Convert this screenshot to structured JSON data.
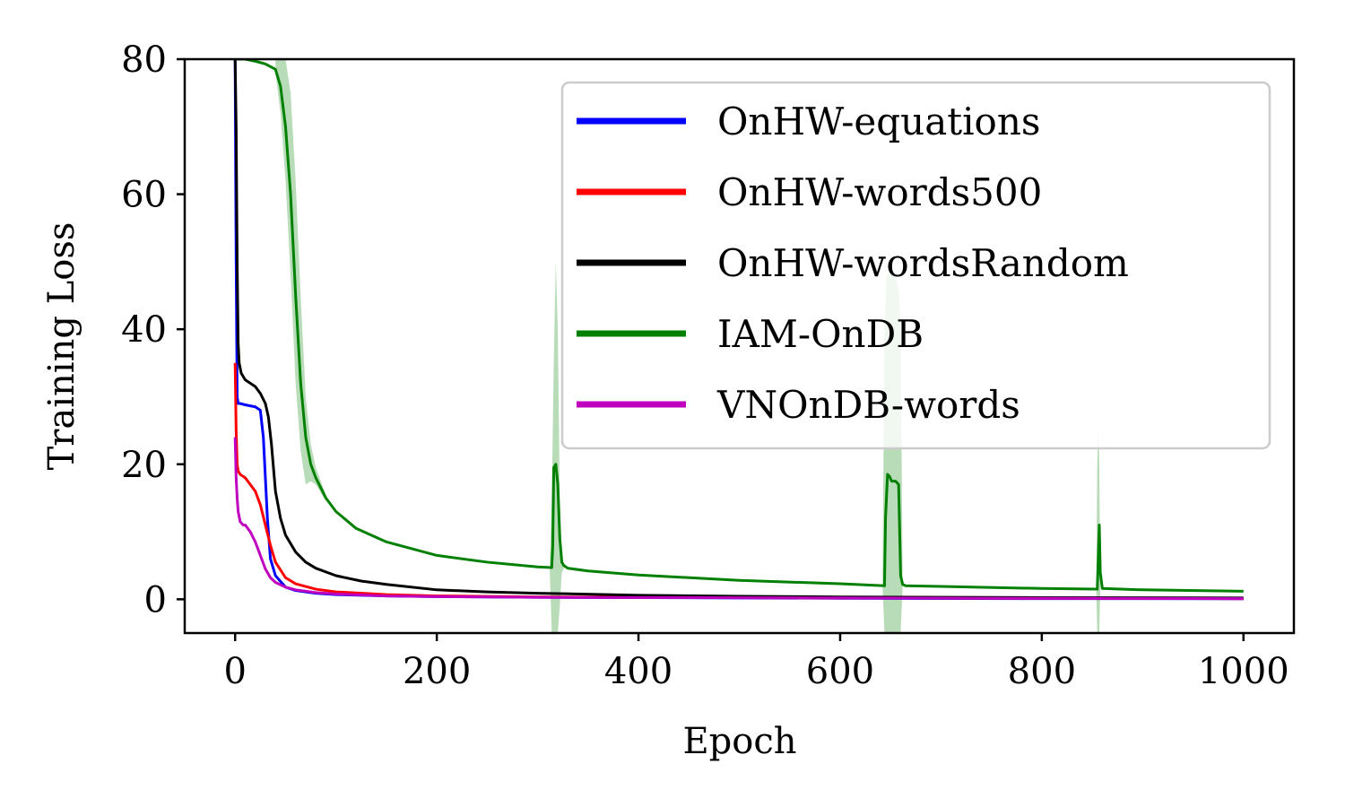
{
  "chart_data": {
    "type": "line",
    "xlabel": "Epoch",
    "ylabel": "Training Loss",
    "xlim": [
      -50,
      1050
    ],
    "ylim": [
      -5,
      80
    ],
    "xticks": [
      "0",
      "200",
      "400",
      "600",
      "800",
      "1000"
    ],
    "yticks": [
      "0",
      "20",
      "40",
      "60",
      "80"
    ],
    "grid": false,
    "legend_position": "top-right",
    "series": [
      {
        "name": "OnHW-equations",
        "color": "#0000ff",
        "x": [
          0,
          1,
          2,
          3,
          5,
          10,
          20,
          25,
          28,
          30,
          32,
          35,
          40,
          50,
          60,
          80,
          100,
          150,
          200,
          300,
          400,
          600,
          800,
          1000
        ],
        "y": [
          80,
          50,
          30,
          29,
          29,
          28.8,
          28.5,
          28,
          24,
          18,
          12,
          6,
          3.5,
          1.8,
          1.3,
          0.9,
          0.7,
          0.5,
          0.4,
          0.3,
          0.25,
          0.15,
          0.1,
          0.08
        ]
      },
      {
        "name": "OnHW-words500",
        "color": "#ff0000",
        "x": [
          0,
          1,
          2,
          3,
          5,
          10,
          15,
          20,
          25,
          30,
          35,
          40,
          50,
          60,
          80,
          100,
          150,
          200,
          300,
          400,
          600,
          800,
          1000
        ],
        "y": [
          35,
          25,
          20,
          19,
          18.5,
          18,
          17,
          16,
          14,
          11,
          8,
          5.5,
          3.2,
          2.3,
          1.5,
          1.1,
          0.7,
          0.5,
          0.35,
          0.3,
          0.2,
          0.15,
          0.1
        ]
      },
      {
        "name": "OnHW-wordsRandom",
        "color": "#000000",
        "x": [
          0,
          1,
          2,
          3,
          4,
          6,
          10,
          15,
          20,
          25,
          30,
          33,
          36,
          40,
          45,
          50,
          60,
          70,
          80,
          100,
          125,
          150,
          200,
          250,
          300,
          400,
          500,
          600,
          800,
          1000
        ],
        "y": [
          80,
          70,
          50,
          38,
          35,
          33.5,
          32.5,
          32,
          31.5,
          30.5,
          29,
          27,
          23,
          16,
          12,
          9.5,
          7,
          5.5,
          4.6,
          3.5,
          2.7,
          2.2,
          1.4,
          1.1,
          0.9,
          0.6,
          0.45,
          0.35,
          0.25,
          0.2
        ]
      },
      {
        "name": "IAM-OnDB",
        "color": "#008000",
        "x": [
          0,
          10,
          20,
          30,
          40,
          45,
          50,
          55,
          60,
          65,
          70,
          75,
          80,
          90,
          100,
          120,
          150,
          200,
          250,
          300,
          314,
          315,
          316,
          318,
          320,
          322,
          324,
          326,
          330,
          350,
          400,
          500,
          600,
          644,
          645,
          647,
          649,
          651,
          653,
          655,
          658,
          660,
          662,
          665,
          700,
          800,
          855,
          856,
          857,
          858,
          860,
          900,
          1000
        ],
        "y": [
          80,
          80,
          79.7,
          79.3,
          78.5,
          76,
          70,
          60,
          45,
          32,
          24,
          20,
          18,
          15,
          13,
          10.5,
          8.5,
          6.5,
          5.5,
          4.8,
          4.7,
          8,
          19.5,
          20,
          17,
          9,
          5.5,
          5,
          4.6,
          4.2,
          3.6,
          2.8,
          2.3,
          2.0,
          12,
          18.5,
          18.2,
          17.5,
          17.5,
          17.5,
          17,
          3.5,
          2.2,
          2,
          1.9,
          1.6,
          1.5,
          6,
          11,
          4,
          1.6,
          1.4,
          1.2
        ]
      },
      {
        "name": "VNOnDB-words",
        "color": "#bf00bf",
        "x": [
          0,
          1,
          2,
          3,
          5,
          8,
          10,
          15,
          20,
          25,
          30,
          35,
          40,
          50,
          60,
          80,
          100,
          150,
          200,
          300,
          400,
          600,
          800,
          1000
        ],
        "y": [
          24,
          18,
          15,
          13,
          11.5,
          11,
          11,
          10,
          8.5,
          6.5,
          4.5,
          3.2,
          2.5,
          1.8,
          1.4,
          1.0,
          0.8,
          0.5,
          0.4,
          0.3,
          0.25,
          0.2,
          0.15,
          0.1
        ]
      }
    ],
    "bands": [
      {
        "series": "IAM-OnDB",
        "color": "#008000",
        "x": [
          40,
          45,
          50,
          55,
          60,
          65,
          70,
          75,
          80,
          90
        ],
        "lower": [
          78,
          72,
          62,
          48,
          32,
          22,
          17,
          17.5,
          17,
          14.5
        ],
        "upper": [
          80,
          80,
          80,
          75,
          62,
          45,
          30,
          23,
          19.5,
          15.5
        ]
      },
      {
        "series": "IAM-OnDB",
        "color": "#008000",
        "x": [
          312,
          314,
          316,
          318,
          320,
          322,
          324,
          326
        ],
        "lower": [
          4.5,
          -5,
          -5,
          -5,
          -5,
          -1,
          4,
          4.5
        ],
        "upper": [
          4.8,
          15,
          35,
          50,
          40,
          15,
          6,
          5
        ]
      },
      {
        "series": "IAM-OnDB",
        "color": "#008000",
        "x": [
          642,
          644,
          646,
          650,
          654,
          658,
          660,
          662
        ],
        "lower": [
          2,
          -5,
          -5,
          -5,
          -5,
          -5,
          -5,
          2
        ],
        "upper": [
          2.1,
          40,
          48,
          49,
          48,
          46,
          40,
          2.2
        ]
      },
      {
        "series": "IAM-OnDB",
        "color": "#008000",
        "x": [
          854,
          855,
          856,
          857,
          858
        ],
        "lower": [
          1.4,
          -5,
          -5,
          -5,
          1.4
        ],
        "upper": [
          1.6,
          20,
          26,
          20,
          1.6
        ]
      }
    ]
  }
}
